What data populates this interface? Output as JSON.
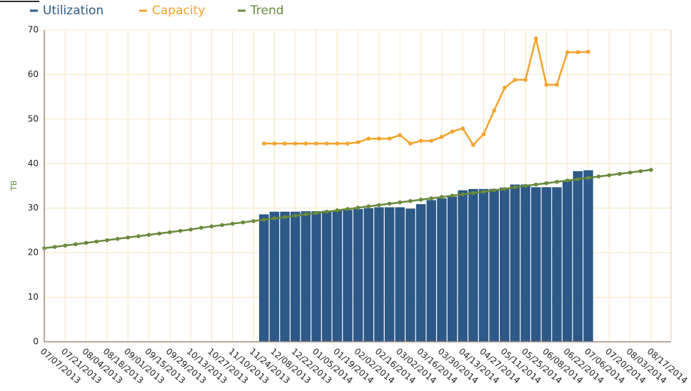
{
  "chart_data": {
    "type": "combo",
    "y_label": "TB",
    "categories": [
      "07/07/2013",
      null,
      "07/21/2013",
      null,
      "08/04/2013",
      null,
      "08/18/2013",
      null,
      "09/01/2013",
      null,
      "09/15/2013",
      null,
      "09/29/2013",
      null,
      "10/13/2013",
      null,
      "10/27/2013",
      null,
      "11/10/2013",
      null,
      "11/24/2013",
      null,
      "12/08/2013",
      null,
      "12/22/2013",
      null,
      "01/05/2014",
      null,
      "01/19/2014",
      null,
      "02/02/2014",
      null,
      "02/16/2014",
      null,
      "03/02/2014",
      null,
      "03/16/2014",
      null,
      "03/30/2014",
      null,
      "04/13/2014",
      null,
      "04/27/2014",
      null,
      "05/11/2014",
      null,
      "05/25/2014",
      null,
      "06/08/2014",
      null,
      "06/22/2014",
      null,
      "07/06/2014",
      null,
      "07/20/2014",
      null,
      "08/03/2014",
      null,
      "08/17/2014"
    ],
    "series": [
      {
        "name": "Utilization",
        "kind": "bar",
        "color": "#2c5987",
        "values": [
          null,
          null,
          null,
          null,
          null,
          null,
          null,
          null,
          null,
          null,
          null,
          null,
          null,
          null,
          null,
          null,
          null,
          null,
          null,
          null,
          null,
          28.6,
          29.2,
          29.2,
          29.2,
          29.3,
          29.3,
          29.4,
          29.5,
          29.6,
          29.8,
          30.0,
          30.2,
          30.2,
          30.2,
          29.9,
          30.9,
          31.8,
          32.2,
          32.6,
          34.0,
          34.3,
          34.3,
          34.3,
          34.6,
          35.3,
          35.3,
          34.7,
          34.7,
          34.7,
          36.1,
          38.3,
          38.5,
          null,
          null,
          null,
          null,
          null,
          null
        ]
      },
      {
        "name": "Capacity",
        "kind": "line",
        "color": "#f5a22a",
        "values": [
          null,
          null,
          null,
          null,
          null,
          null,
          null,
          null,
          null,
          null,
          null,
          null,
          null,
          null,
          null,
          null,
          null,
          null,
          null,
          null,
          null,
          44.5,
          44.5,
          44.5,
          44.5,
          44.5,
          44.5,
          44.5,
          44.5,
          44.5,
          44.8,
          45.6,
          45.6,
          45.6,
          46.4,
          44.5,
          45.1,
          45.1,
          46.0,
          47.2,
          47.9,
          44.2,
          46.6,
          51.9,
          57.0,
          58.8,
          58.8,
          68.1,
          57.7,
          57.7,
          65.0,
          65.0,
          65.1,
          null,
          null,
          null,
          null,
          null,
          null
        ]
      },
      {
        "name": "Trend",
        "kind": "line",
        "color": "#6a8a3c",
        "values": [
          21.0,
          21.3,
          21.6,
          21.9,
          22.2,
          22.5,
          22.8,
          23.1,
          23.4,
          23.7,
          24.0,
          24.3,
          24.6,
          24.9,
          25.2,
          25.6,
          25.9,
          26.2,
          26.5,
          26.8,
          27.1,
          27.4,
          27.7,
          28.0,
          28.3,
          28.6,
          28.9,
          29.2,
          29.5,
          29.8,
          30.1,
          30.4,
          30.7,
          31.0,
          31.3,
          31.6,
          31.9,
          32.2,
          32.5,
          32.8,
          33.1,
          33.4,
          33.7,
          34.0,
          34.3,
          34.7,
          35.0,
          35.3,
          35.6,
          35.9,
          36.2,
          36.5,
          36.8,
          37.1,
          37.4,
          37.7,
          38.0,
          38.3,
          38.6
        ]
      }
    ],
    "ylim": [
      0,
      70
    ],
    "yticks": [
      0,
      10,
      20,
      30,
      40,
      50,
      60,
      70
    ],
    "grid": true,
    "legend": "top-left"
  }
}
